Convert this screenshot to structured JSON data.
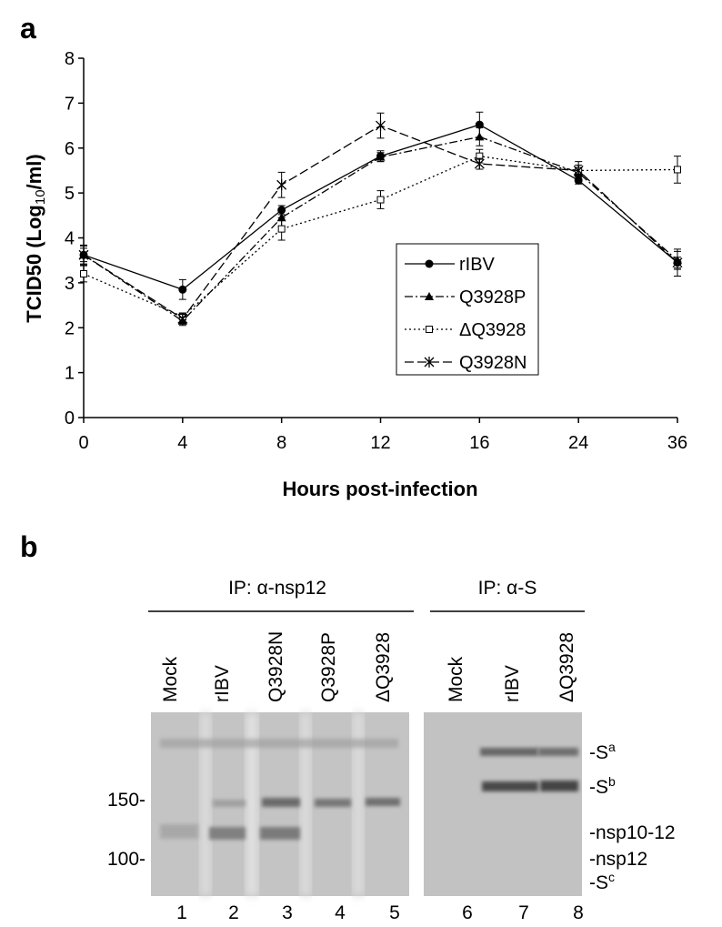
{
  "chart_data": {
    "type": "line",
    "panel_label": "a",
    "xlabel": "Hours post-infection",
    "ylabel": [
      "TCID50 (Log",
      "10",
      "/ml)"
    ],
    "categories": [
      "0",
      "4",
      "8",
      "12",
      "16",
      "24",
      "36"
    ],
    "ylim": [
      0,
      8
    ],
    "yticks": [
      0,
      1,
      2,
      3,
      4,
      5,
      6,
      7,
      8
    ],
    "series": [
      {
        "name": "rIBV",
        "color": "#000000",
        "dash": "solid",
        "marker": "circle",
        "values": [
          3.62,
          2.85,
          4.62,
          5.82,
          6.52,
          5.28,
          3.45
        ],
        "errors": [
          0.2,
          0.22,
          0.1,
          0.12,
          0.28,
          0.08,
          0.12
        ]
      },
      {
        "name": "Q3928P",
        "color": "#000000",
        "dash": "dashdot",
        "marker": "triangle",
        "values": [
          3.62,
          2.15,
          4.45,
          5.8,
          6.25,
          5.45,
          3.5
        ],
        "errors": [
          0.15,
          0.1,
          0.2,
          0.1,
          0.2,
          0.12,
          0.2
        ]
      },
      {
        "name": "ΔQ3928",
        "color": "#000000",
        "dash": "dotted",
        "marker": "square",
        "values": [
          3.2,
          2.25,
          4.2,
          4.85,
          5.82,
          5.5,
          5.52
        ],
        "errors": [
          0.18,
          0.08,
          0.25,
          0.2,
          0.15,
          0.12,
          0.3
        ]
      },
      {
        "name": "Q3928N",
        "color": "#000000",
        "dash": "dashed",
        "marker": "asterisk",
        "values": [
          3.62,
          2.2,
          5.18,
          6.5,
          5.65,
          5.5,
          3.45
        ],
        "errors": [
          0.22,
          0.1,
          0.28,
          0.28,
          0.12,
          0.2,
          0.3
        ]
      }
    ]
  },
  "panel_b": {
    "panel_label": "b",
    "groups": [
      "IP: α-nsp12",
      "IP: α-S"
    ],
    "lanes": [
      "Mock",
      "rIBV",
      "Q3928N",
      "Q3928P",
      "ΔQ3928",
      "Mock",
      "rIBV",
      "ΔQ3928"
    ],
    "lane_numbers": [
      "1",
      "2",
      "3",
      "4",
      "5",
      "6",
      "7",
      "8"
    ],
    "size_markers": [
      "150-",
      "100-"
    ],
    "band_labels": [
      [
        "-S",
        "a"
      ],
      [
        "-S",
        "b"
      ],
      [
        "-nsp10-12",
        ""
      ],
      [
        "-nsp12",
        ""
      ],
      [
        "-S",
        "c"
      ]
    ]
  }
}
